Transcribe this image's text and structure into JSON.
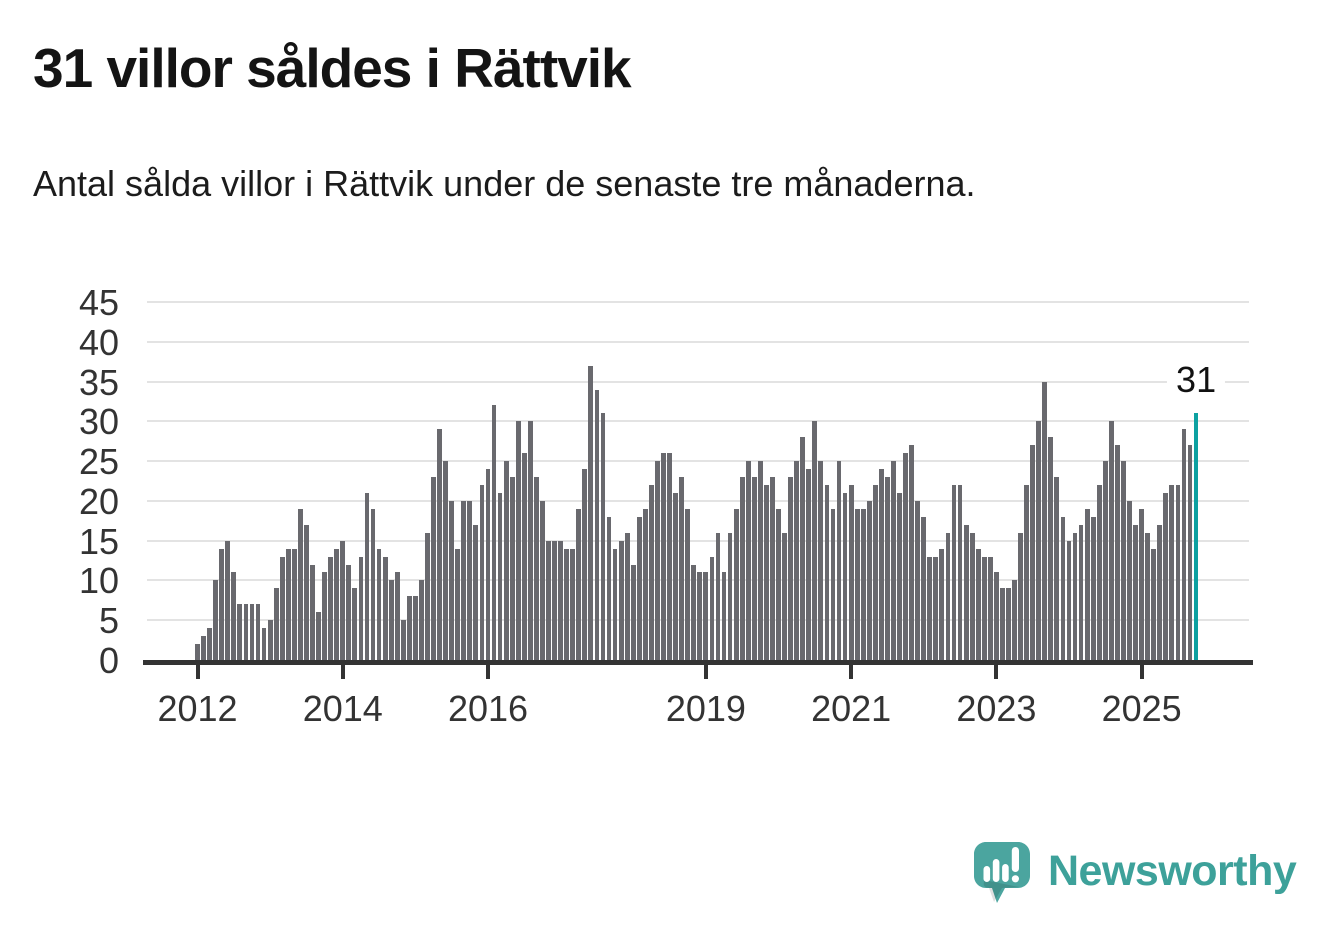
{
  "header": {
    "title": "31 villor såldes i Rättvik",
    "subtitle": "Antal sålda villor i Rättvik under de senaste tre månaderna."
  },
  "footer": {
    "brand": "Newsworthy"
  },
  "colors": {
    "bar": "#69696e",
    "highlight": "#0da1a1",
    "grid": "#e3e3e3",
    "axis": "#333333",
    "tick_text": "#333333",
    "title_text": "#141414",
    "brand_teal": "#3da19a",
    "logo_bubble": "#4ba59f"
  },
  "chart_data": {
    "type": "bar",
    "title": "31 villor såldes i Rättvik",
    "subtitle": "Antal sålda villor i Rättvik under de senaste tre månaderna.",
    "series_name": "Antal sålda villor (rullande 3 månader)",
    "x_start": "2012-01",
    "frequency": "monthly",
    "values": [
      2,
      3,
      4,
      10,
      14,
      15,
      11,
      7,
      7,
      7,
      7,
      4,
      5,
      9,
      13,
      14,
      14,
      19,
      17,
      12,
      6,
      11,
      13,
      14,
      15,
      12,
      9,
      13,
      21,
      19,
      14,
      13,
      10,
      11,
      5,
      8,
      8,
      10,
      16,
      23,
      29,
      25,
      20,
      14,
      20,
      20,
      17,
      22,
      24,
      32,
      21,
      25,
      23,
      30,
      26,
      30,
      23,
      20,
      15,
      15,
      15,
      14,
      14,
      19,
      24,
      37,
      34,
      31,
      18,
      14,
      15,
      16,
      12,
      18,
      19,
      22,
      25,
      26,
      26,
      21,
      23,
      19,
      12,
      11,
      11,
      13,
      16,
      11,
      16,
      19,
      23,
      25,
      23,
      25,
      22,
      23,
      19,
      16,
      23,
      25,
      28,
      24,
      30,
      25,
      22,
      19,
      25,
      21,
      22,
      19,
      19,
      20,
      22,
      24,
      23,
      25,
      21,
      26,
      27,
      20,
      18,
      13,
      13,
      14,
      16,
      22,
      22,
      17,
      16,
      14,
      13,
      13,
      11,
      9,
      9,
      10,
      16,
      22,
      27,
      30,
      35,
      28,
      23,
      18,
      15,
      16,
      17,
      19,
      18,
      22,
      25,
      30,
      27,
      25,
      20,
      17,
      19,
      16,
      14,
      17,
      21,
      22,
      22,
      29,
      27,
      31
    ],
    "highlight": {
      "index": 165,
      "value": 31,
      "label": "31"
    },
    "ylim": [
      0,
      45
    ],
    "yticks": [
      0,
      5,
      10,
      15,
      20,
      25,
      30,
      35,
      40,
      45
    ],
    "xticks": [
      {
        "label": "2012",
        "month_index": 0
      },
      {
        "label": "2014",
        "month_index": 24
      },
      {
        "label": "2016",
        "month_index": 48
      },
      {
        "label": "2019",
        "month_index": 84
      },
      {
        "label": "2021",
        "month_index": 108
      },
      {
        "label": "2023",
        "month_index": 132
      },
      {
        "label": "2025",
        "month_index": 156
      }
    ],
    "grid": "horizontal",
    "legend": "none",
    "ylabel": "",
    "xlabel": ""
  }
}
